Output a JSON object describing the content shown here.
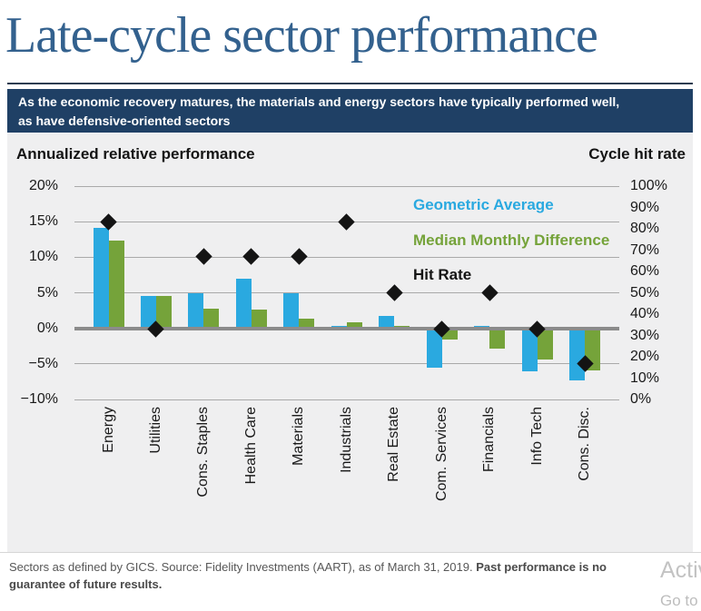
{
  "title": "Late-cycle sector performance",
  "banner": {
    "line1": "As the economic recovery matures, the materials and energy sectors have typically performed well,",
    "line2": "as have defensive-oriented sectors",
    "background": "#1f4065"
  },
  "chart_data": {
    "type": "bar",
    "title": "Late-cycle sector performance",
    "categories": [
      "Energy",
      "Utilities",
      "Cons. Staples",
      "Health Care",
      "Materials",
      "Industrials",
      "Real Estate",
      "Com. Services",
      "Financials",
      "Info Tech",
      "Cons. Disc."
    ],
    "series": [
      {
        "name": "Geometric Average",
        "type": "bar",
        "axis": "left",
        "color": "#2aa9e0",
        "values": [
          14.1,
          4.5,
          5.0,
          7.0,
          5.0,
          0.4,
          1.8,
          -5.5,
          0.4,
          -6.1,
          -7.3
        ]
      },
      {
        "name": "Median Monthly Difference",
        "type": "bar",
        "axis": "left",
        "color": "#75a33a",
        "values": [
          12.3,
          4.5,
          2.8,
          2.6,
          1.3,
          0.8,
          0.4,
          -1.6,
          -2.8,
          -4.4,
          -5.9
        ]
      },
      {
        "name": "Hit Rate",
        "type": "scatter",
        "marker": "diamond",
        "axis": "right",
        "color": "#141414",
        "values": [
          83,
          33,
          67,
          67,
          67,
          83,
          50,
          33,
          50,
          33,
          17
        ]
      }
    ],
    "left_axis": {
      "title": "Annualized relative performance",
      "unit": "%",
      "min": -10,
      "max": 20,
      "tick_values": [
        20,
        15,
        10,
        5,
        0,
        -5,
        -10
      ],
      "tick_labels": [
        "20%",
        "15%",
        "10%",
        "5%",
        "0%",
        "−5%",
        "−10%"
      ]
    },
    "right_axis": {
      "title": "Cycle hit rate",
      "unit": "%",
      "min": 0,
      "max": 100,
      "tick_values": [
        100,
        90,
        80,
        70,
        60,
        50,
        40,
        30,
        20,
        10,
        0
      ],
      "tick_labels": [
        "100%",
        "90%",
        "80%",
        "70%",
        "60%",
        "50%",
        "40%",
        "30%",
        "20%",
        "10%",
        "0%"
      ]
    },
    "grid": true,
    "legend_position": "top-right",
    "plot_background": "#efeff0"
  },
  "footer": {
    "source": "Sectors as defined by GICS. Source: Fidelity Investments (AART), as of March 31, 2019. ",
    "disclaimer": "Past performance is no guarantee of future results."
  },
  "watermark": {
    "line1": "Activ",
    "line2": "Go to"
  }
}
